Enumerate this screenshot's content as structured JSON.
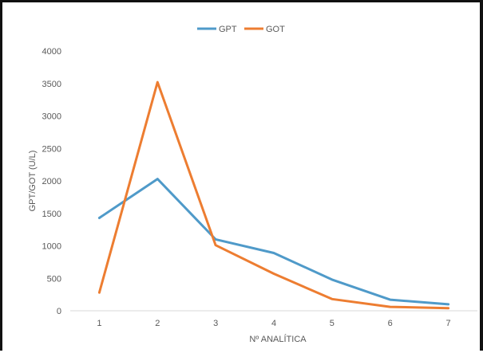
{
  "chart_data": {
    "type": "line",
    "title": "",
    "xlabel": "Nº ANALÍTICA",
    "ylabel": "GPT/GOT (U/L)",
    "categories": [
      "1",
      "2",
      "3",
      "4",
      "5",
      "6",
      "7"
    ],
    "ylim": [
      0,
      4000
    ],
    "yticks": [
      "0",
      "500",
      "1000",
      "1500",
      "2000",
      "2500",
      "3000",
      "3500",
      "4000"
    ],
    "legend_position": "top-center",
    "grid": false,
    "series": [
      {
        "name": "GPT",
        "color": "#4F9AC9",
        "values": [
          1430,
          2030,
          1100,
          890,
          480,
          170,
          100
        ]
      },
      {
        "name": "GOT",
        "color": "#ED7D31",
        "values": [
          280,
          3520,
          1010,
          570,
          180,
          60,
          40
        ]
      }
    ]
  }
}
